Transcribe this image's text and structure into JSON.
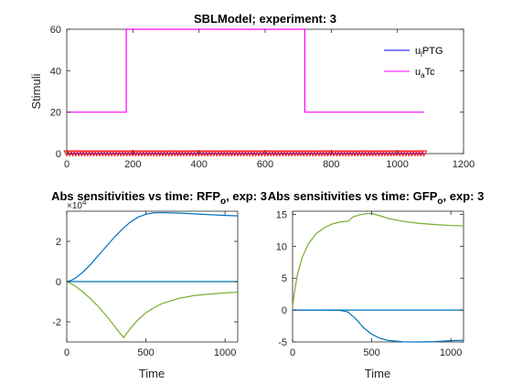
{
  "chart_data": [
    {
      "type": "line",
      "title": "SBLModel; experiment: 3",
      "ylabel": "Stimuli",
      "xlabel": "",
      "xlim": [
        0,
        1200
      ],
      "ylim": [
        0,
        60
      ],
      "xticks": [
        "0",
        "200",
        "400",
        "600",
        "800",
        "1000",
        "1200"
      ],
      "yticks": [
        "0",
        "20",
        "40",
        "60"
      ],
      "grid": false,
      "legend_position": "top-right",
      "legend": [
        {
          "main": "u",
          "sub": "l",
          "rest": "PTG",
          "color": "#0000ff"
        },
        {
          "main": "u",
          "sub": "a",
          "rest": "Tc",
          "color": "#ff00ff"
        }
      ],
      "series": [
        {
          "color": "#0000ff",
          "x": [
            0,
            1080
          ],
          "y": [
            0,
            0
          ]
        },
        {
          "color": "#ff00ff",
          "x": [
            0,
            180,
            180,
            720,
            720,
            1080
          ],
          "y": [
            20,
            20,
            60,
            60,
            20,
            20
          ]
        }
      ],
      "markers": {
        "color": "#ff0000",
        "symbol": "triangle-down",
        "y": 0,
        "x_start": 0,
        "x_end": 1080,
        "count": 120
      }
    },
    {
      "type": "line",
      "title_main": "Abs sensitivities vs time: RFP",
      "title_sub": "o",
      "title_rest": ", exp: 3",
      "xlabel": "Time",
      "ylabel": "",
      "y_multiplier": "×10",
      "y_multiplier_exp": "4",
      "xlim": [
        0,
        1080
      ],
      "ylim": [
        -3,
        3.5
      ],
      "xticks": [
        "0",
        "500",
        "1000"
      ],
      "yticks": [
        "-2",
        "0",
        "2"
      ],
      "grid": false,
      "series": [
        {
          "color": "#0072bd",
          "x": [
            0,
            25,
            50,
            100,
            150,
            200,
            250,
            300,
            350,
            400,
            450,
            500,
            550,
            600,
            700,
            800,
            900,
            1000,
            1080
          ],
          "y": [
            0,
            0.05,
            0.15,
            0.45,
            0.85,
            1.3,
            1.75,
            2.2,
            2.6,
            2.95,
            3.2,
            3.35,
            3.42,
            3.43,
            3.41,
            3.37,
            3.33,
            3.29,
            3.27
          ]
        },
        {
          "color": "#0072bd",
          "x": [
            0,
            1080
          ],
          "y": [
            0,
            0
          ]
        },
        {
          "color": "#77ac30",
          "x": [
            0,
            50,
            100,
            150,
            200,
            250,
            300,
            340,
            360,
            400,
            450,
            500,
            550,
            600,
            700,
            800,
            900,
            1000,
            1080
          ],
          "y": [
            0,
            -0.2,
            -0.5,
            -0.85,
            -1.25,
            -1.7,
            -2.2,
            -2.6,
            -2.78,
            -2.35,
            -1.9,
            -1.55,
            -1.3,
            -1.1,
            -0.85,
            -0.7,
            -0.62,
            -0.56,
            -0.53
          ]
        }
      ]
    },
    {
      "type": "line",
      "title_main": "Abs sensitivities vs time: GFP",
      "title_sub": "o",
      "title_rest": ", exp: 3",
      "xlabel": "Time",
      "ylabel": "",
      "xlim": [
        0,
        1080
      ],
      "ylim": [
        -5,
        15.5
      ],
      "xticks": [
        "0",
        "500",
        "1000"
      ],
      "yticks": [
        "-5",
        "0",
        "5",
        "10",
        "15"
      ],
      "grid": false,
      "series": [
        {
          "color": "#77ac30",
          "x": [
            0,
            10,
            30,
            60,
            100,
            150,
            200,
            250,
            300,
            350,
            360,
            380,
            420,
            460,
            500,
            550,
            600,
            700,
            800,
            900,
            1000,
            1080
          ],
          "y": [
            0.5,
            2.5,
            5.5,
            8.2,
            10.4,
            12,
            12.9,
            13.5,
            13.8,
            13.95,
            14.1,
            14.6,
            14.9,
            15.1,
            15.15,
            14.8,
            14.4,
            13.9,
            13.6,
            13.4,
            13.25,
            13.2
          ]
        },
        {
          "color": "#0072bd",
          "x": [
            0,
            1080
          ],
          "y": [
            0,
            0
          ]
        },
        {
          "color": "#0072bd",
          "x": [
            0,
            200,
            300,
            350,
            400,
            450,
            500,
            550,
            600,
            700,
            800,
            900,
            1000,
            1080
          ],
          "y": [
            0,
            0,
            -0.05,
            -0.3,
            -1.4,
            -2.8,
            -3.8,
            -4.4,
            -4.75,
            -4.98,
            -5,
            -4.95,
            -4.8,
            -4.72
          ]
        }
      ]
    }
  ]
}
